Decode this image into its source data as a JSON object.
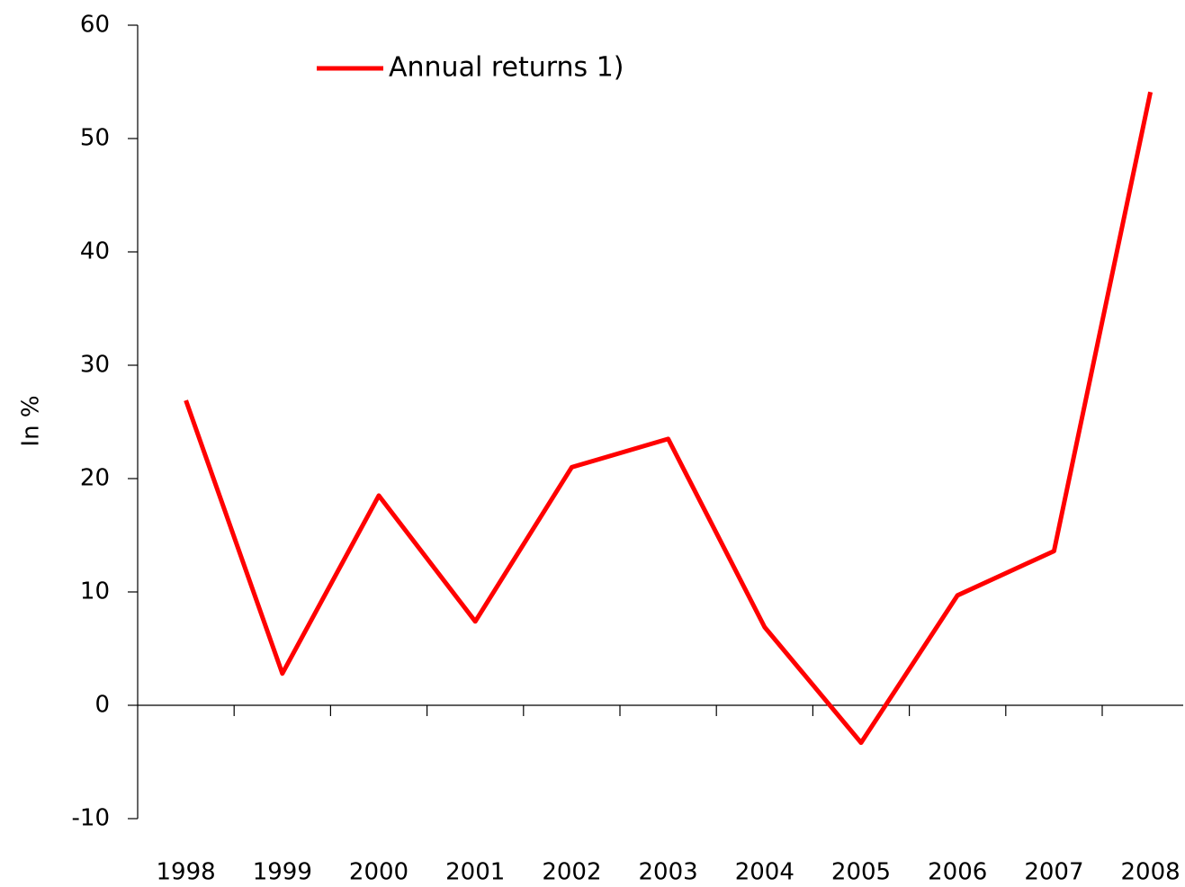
{
  "chart_data": {
    "type": "line",
    "y_label": "In %",
    "categories": [
      "1998",
      "1999",
      "2000",
      "2001",
      "2002",
      "2003",
      "2004",
      "2005",
      "2006",
      "2007",
      "2008"
    ],
    "series": [
      {
        "name": "Annual returns 1)",
        "color": "#ff0000",
        "values": [
          26.9,
          2.8,
          18.5,
          7.4,
          21.0,
          23.5,
          6.9,
          -3.3,
          9.7,
          13.6,
          54.1
        ]
      }
    ],
    "ylim": [
      -10,
      60
    ],
    "yticks": [
      -10,
      0,
      10,
      20,
      30,
      40,
      50,
      60
    ],
    "legend": "top-center"
  }
}
